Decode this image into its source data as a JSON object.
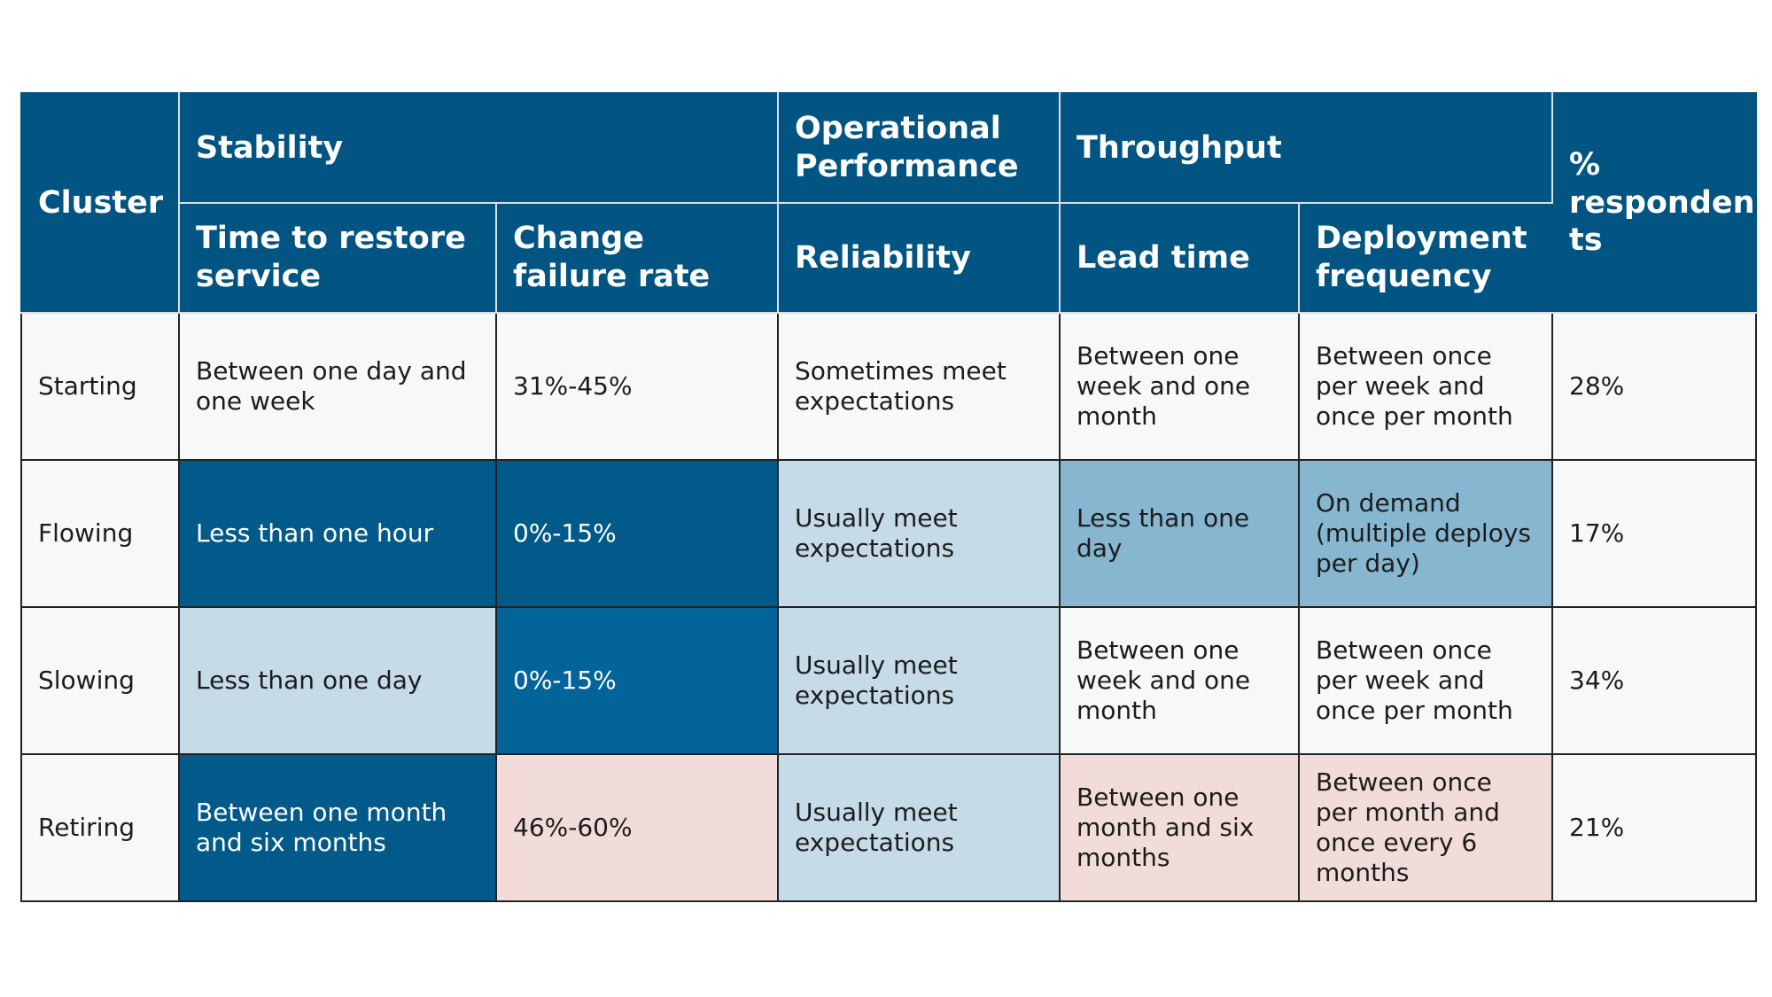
{
  "header": {
    "cluster": "Cluster",
    "stability": "Stability",
    "operational_performance": "Operational Performance",
    "throughput": "Throughput",
    "percent_respondents": "% responden ts",
    "time_to_restore": "Time to restore service",
    "change_failure_rate": "Change failure rate",
    "reliability": "Reliability",
    "lead_time": "Lead time",
    "deployment_frequency": "Deployment frequency"
  },
  "rows": [
    {
      "cluster": "Starting",
      "time_to_restore": "Between one day and one week",
      "change_failure_rate": "31%-45%",
      "reliability": "Sometimes meet expectations",
      "lead_time": "Between one week and one month",
      "deployment_frequency": "Between once per week and once per month",
      "respondents": "28%"
    },
    {
      "cluster": "Flowing",
      "time_to_restore": "Less than one hour",
      "change_failure_rate": "0%-15%",
      "reliability": "Usually meet expectations",
      "lead_time": "Less than one day",
      "deployment_frequency": "On demand (multiple deploys per day)",
      "respondents": "17%"
    },
    {
      "cluster": "Slowing",
      "time_to_restore": "Less than one day",
      "change_failure_rate": "0%-15%",
      "reliability": "Usually meet expectations",
      "lead_time": "Between one week and one month",
      "deployment_frequency": "Between once per week and once per month",
      "respondents": "34%"
    },
    {
      "cluster": "Retiring",
      "time_to_restore": "Between one month and six months",
      "change_failure_rate": "46%-60%",
      "reliability": "Usually meet expectations",
      "lead_time": "Between one month and six months",
      "deployment_frequency": "Between once per month and once every 6 months",
      "respondents": "21%"
    }
  ],
  "colors": {
    "header": "#025482",
    "dark_blue": "#025a8a",
    "light_blue": "#c5dbe8",
    "mid_blue": "#86b6d0",
    "pink": "#f2dcda",
    "white": "#f7f8fa"
  }
}
